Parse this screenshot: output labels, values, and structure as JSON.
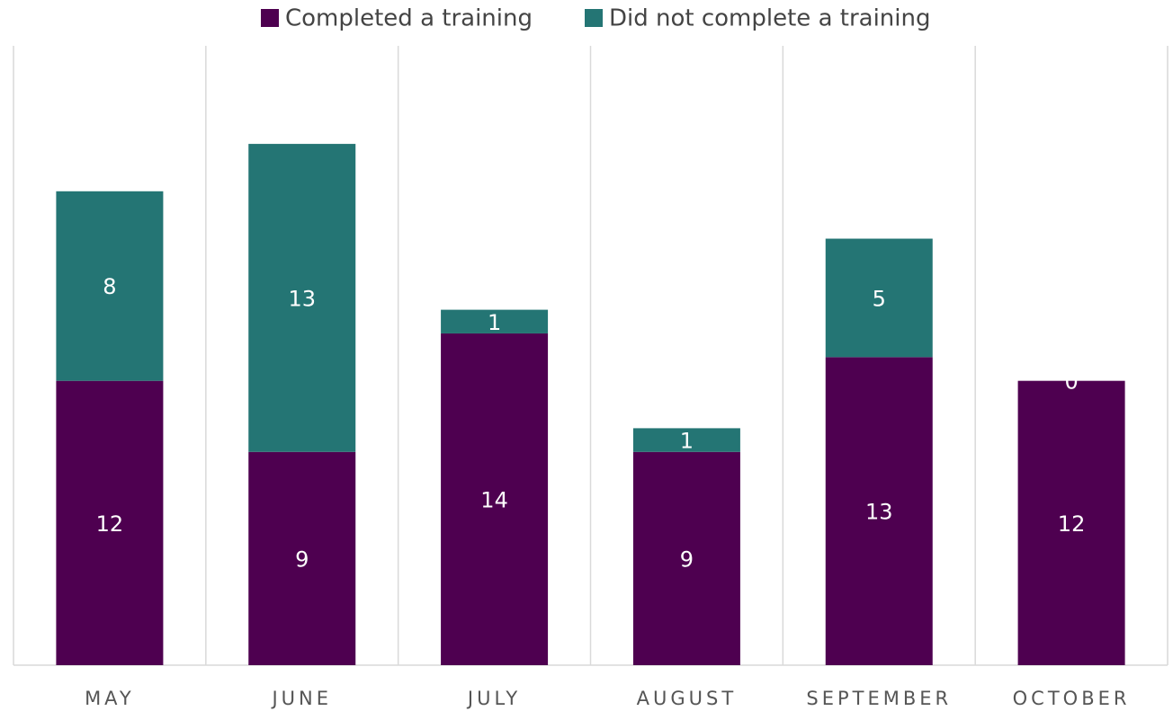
{
  "chart_data": {
    "type": "stacked-bar",
    "categories": [
      "MAY",
      "JUNE",
      "JULY",
      "AUGUST",
      "SEPTEMBER",
      "OCTOBER"
    ],
    "series": [
      {
        "name": "Completed a training",
        "color": "#4e0050",
        "values": [
          12,
          9,
          14,
          9,
          13,
          12
        ]
      },
      {
        "name": "Did not complete a training",
        "color": "#247574",
        "values": [
          8,
          13,
          1,
          1,
          5,
          0
        ]
      }
    ],
    "ylim": [
      0,
      25
    ],
    "legend": "top"
  }
}
